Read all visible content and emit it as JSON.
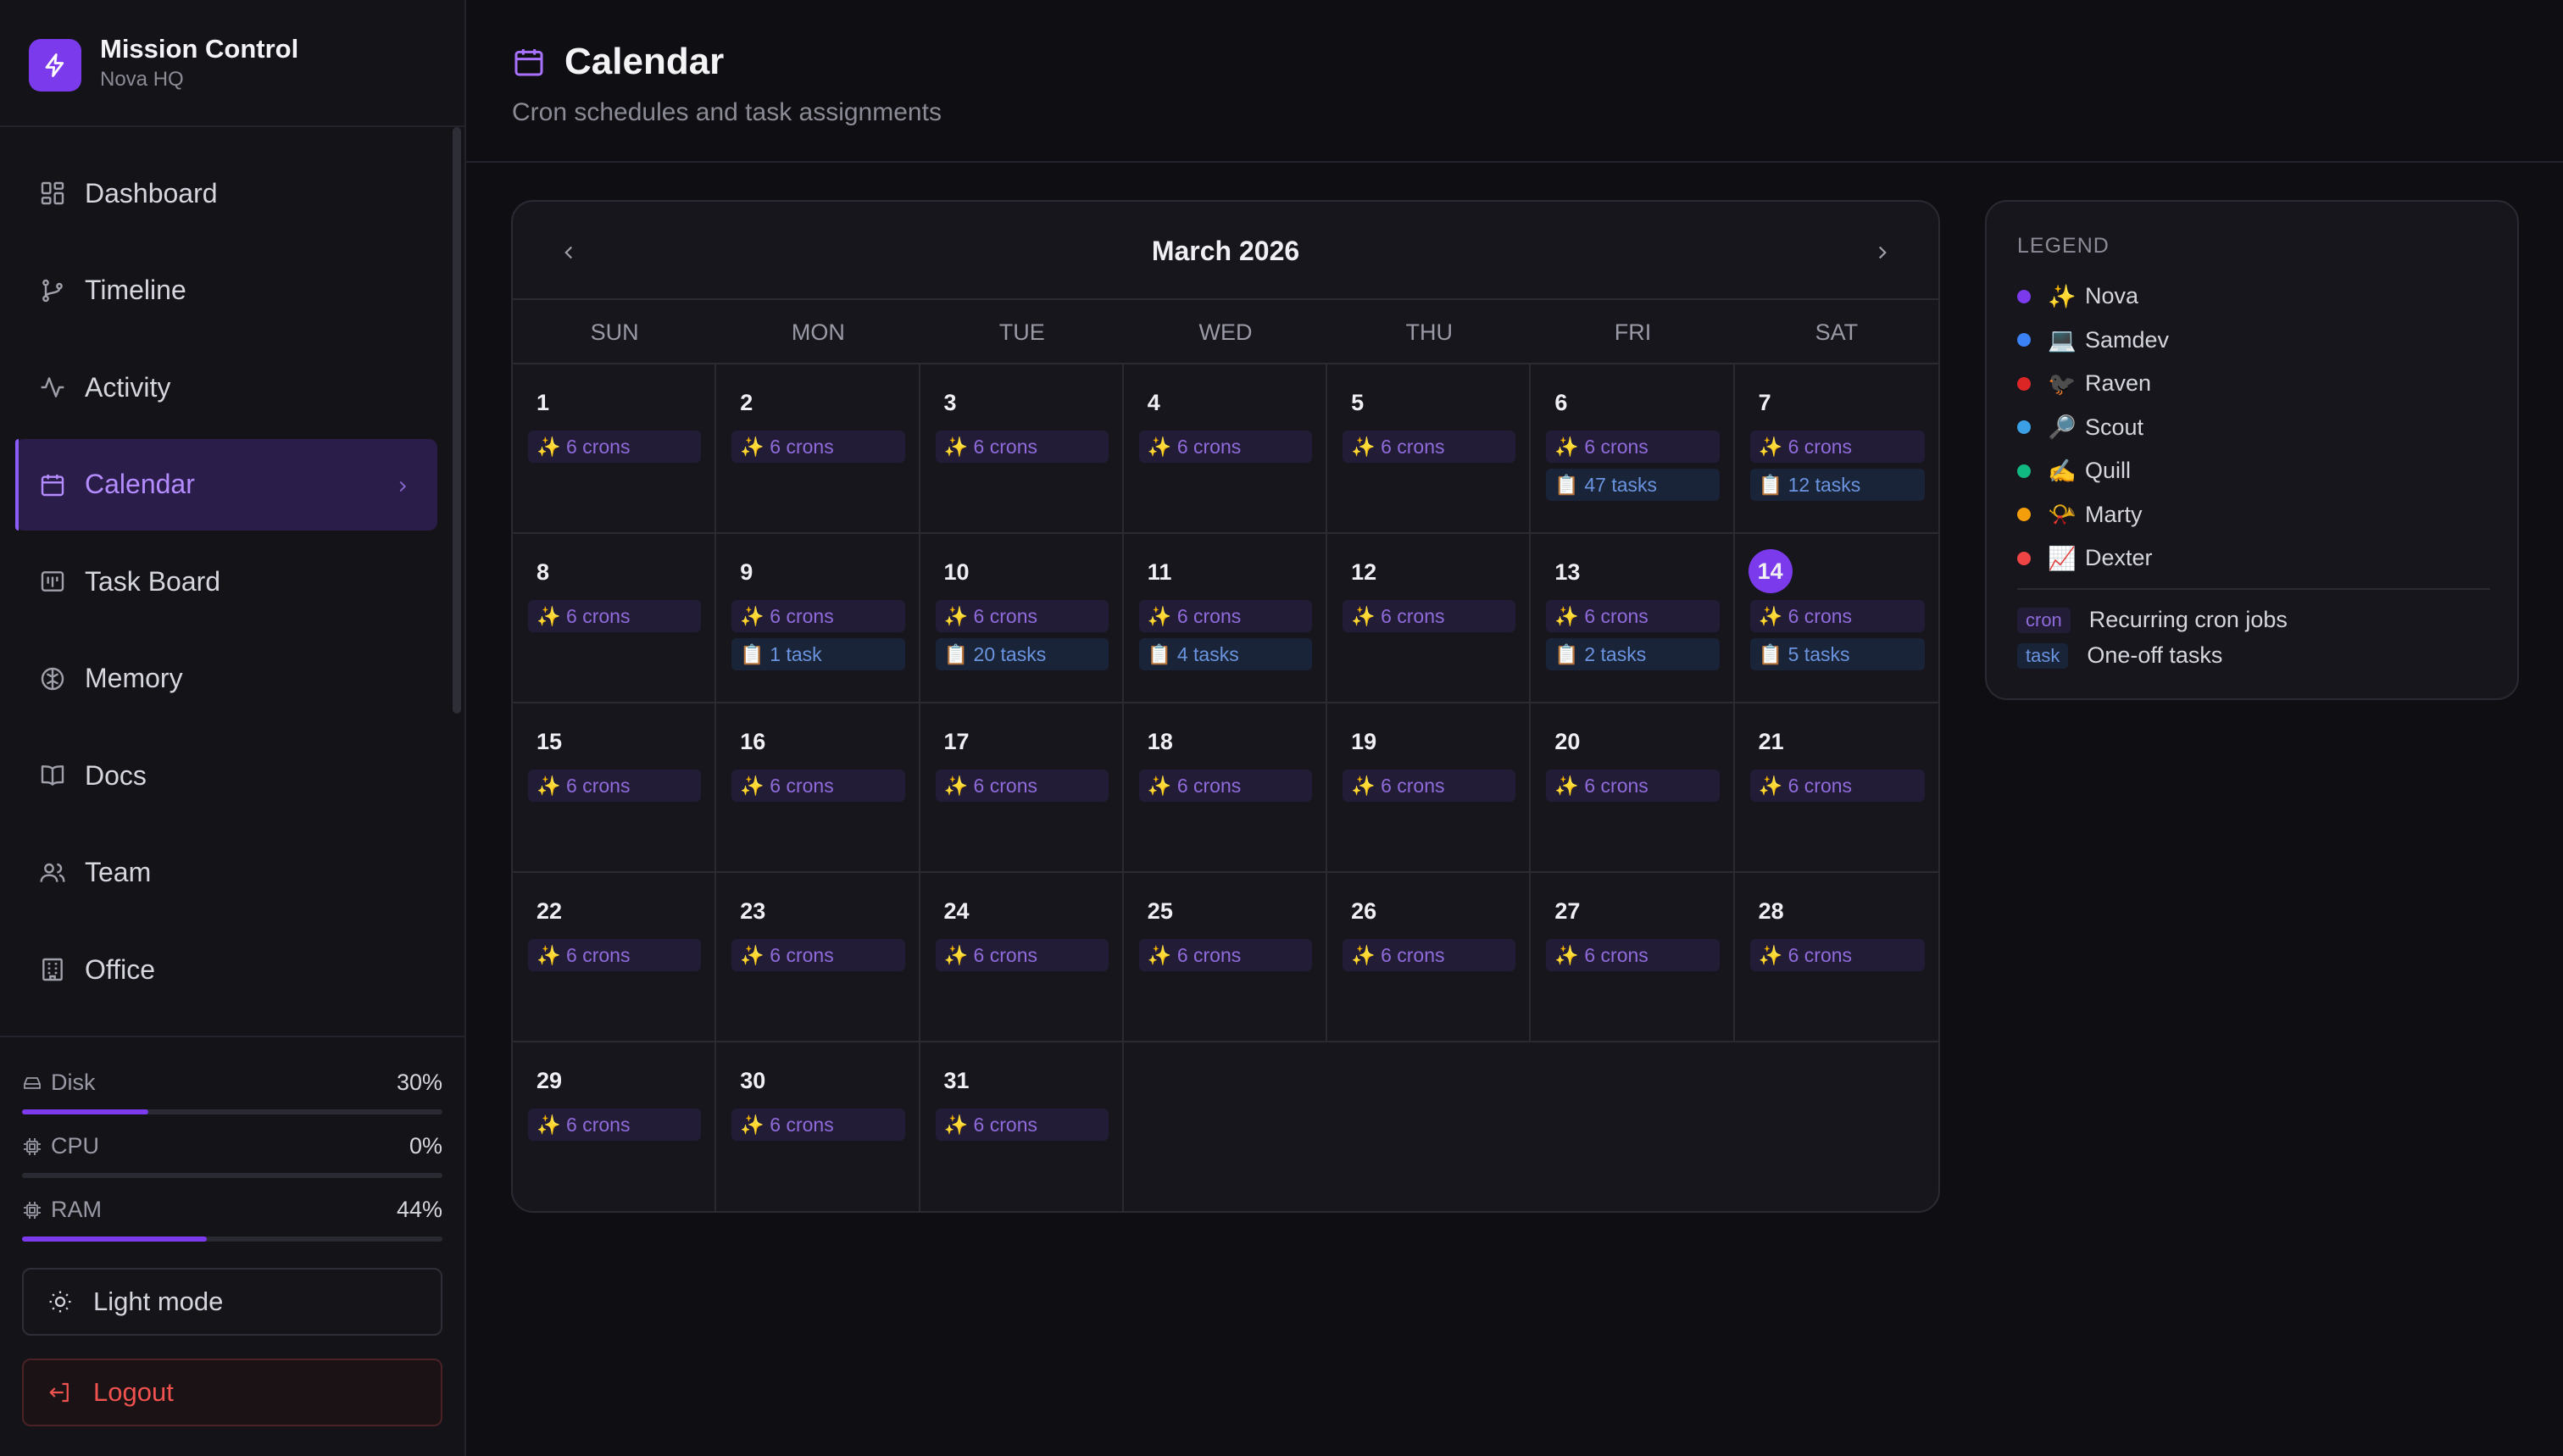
{
  "brand": {
    "title": "Mission Control",
    "subtitle": "Nova HQ"
  },
  "nav": [
    {
      "label": "Dashboard",
      "icon": "dashboard-icon"
    },
    {
      "label": "Timeline",
      "icon": "branch-icon"
    },
    {
      "label": "Activity",
      "icon": "pulse-icon"
    },
    {
      "label": "Calendar",
      "icon": "calendar-icon",
      "active": true
    },
    {
      "label": "Task Board",
      "icon": "board-icon"
    },
    {
      "label": "Memory",
      "icon": "brain-icon"
    },
    {
      "label": "Docs",
      "icon": "book-icon"
    },
    {
      "label": "Team",
      "icon": "users-icon"
    },
    {
      "label": "Office",
      "icon": "building-icon"
    }
  ],
  "metrics": [
    {
      "label": "Disk",
      "value": "30%",
      "fraction": 0.3
    },
    {
      "label": "CPU",
      "value": "0%",
      "fraction": 0.0
    },
    {
      "label": "RAM",
      "value": "44%",
      "fraction": 0.44
    }
  ],
  "buttons": {
    "light_mode": "Light mode",
    "logout": "Logout"
  },
  "header": {
    "title": "Calendar",
    "subtitle": "Cron schedules and task assignments"
  },
  "calendar": {
    "month": "March 2026",
    "weekdays": [
      "SUN",
      "MON",
      "TUE",
      "WED",
      "THU",
      "FRI",
      "SAT"
    ],
    "today": 14,
    "days": [
      {
        "day": "1",
        "cron": "✨ 6 crons",
        "task": ""
      },
      {
        "day": "2",
        "cron": "✨ 6 crons",
        "task": ""
      },
      {
        "day": "3",
        "cron": "✨ 6 crons",
        "task": ""
      },
      {
        "day": "4",
        "cron": "✨ 6 crons",
        "task": ""
      },
      {
        "day": "5",
        "cron": "✨ 6 crons",
        "task": ""
      },
      {
        "day": "6",
        "cron": "✨ 6 crons",
        "task": "📋 47 tasks"
      },
      {
        "day": "7",
        "cron": "✨ 6 crons",
        "task": "📋 12 tasks"
      },
      {
        "day": "8",
        "cron": "✨ 6 crons",
        "task": ""
      },
      {
        "day": "9",
        "cron": "✨ 6 crons",
        "task": "📋 1 task"
      },
      {
        "day": "10",
        "cron": "✨ 6 crons",
        "task": "📋 20 tasks"
      },
      {
        "day": "11",
        "cron": "✨ 6 crons",
        "task": "📋 4 tasks"
      },
      {
        "day": "12",
        "cron": "✨ 6 crons",
        "task": ""
      },
      {
        "day": "13",
        "cron": "✨ 6 crons",
        "task": "📋 2 tasks"
      },
      {
        "day": "14",
        "cron": "✨ 6 crons",
        "task": "📋 5 tasks"
      },
      {
        "day": "15",
        "cron": "✨ 6 crons",
        "task": ""
      },
      {
        "day": "16",
        "cron": "✨ 6 crons",
        "task": ""
      },
      {
        "day": "17",
        "cron": "✨ 6 crons",
        "task": ""
      },
      {
        "day": "18",
        "cron": "✨ 6 crons",
        "task": ""
      },
      {
        "day": "19",
        "cron": "✨ 6 crons",
        "task": ""
      },
      {
        "day": "20",
        "cron": "✨ 6 crons",
        "task": ""
      },
      {
        "day": "21",
        "cron": "✨ 6 crons",
        "task": ""
      },
      {
        "day": "22",
        "cron": "✨ 6 crons",
        "task": ""
      },
      {
        "day": "23",
        "cron": "✨ 6 crons",
        "task": ""
      },
      {
        "day": "24",
        "cron": "✨ 6 crons",
        "task": ""
      },
      {
        "day": "25",
        "cron": "✨ 6 crons",
        "task": ""
      },
      {
        "day": "26",
        "cron": "✨ 6 crons",
        "task": ""
      },
      {
        "day": "27",
        "cron": "✨ 6 crons",
        "task": ""
      },
      {
        "day": "28",
        "cron": "✨ 6 crons",
        "task": ""
      },
      {
        "day": "29",
        "cron": "✨ 6 crons",
        "task": ""
      },
      {
        "day": "30",
        "cron": "✨ 6 crons",
        "task": ""
      },
      {
        "day": "31",
        "cron": "✨ 6 crons",
        "task": ""
      }
    ]
  },
  "legend": {
    "title": "LEGEND",
    "agents": [
      {
        "emoji": "✨",
        "name": "Nova",
        "color": "#7c3aed"
      },
      {
        "emoji": "💻",
        "name": "Samdev",
        "color": "#3b82f6"
      },
      {
        "emoji": "🐦‍⬛",
        "name": "Raven",
        "color": "#dc2626"
      },
      {
        "emoji": "🔎",
        "name": "Scout",
        "color": "#3b9fe6"
      },
      {
        "emoji": "✍️",
        "name": "Quill",
        "color": "#10b981"
      },
      {
        "emoji": "📯",
        "name": "Marty",
        "color": "#f59e0b"
      },
      {
        "emoji": "📈",
        "name": "Dexter",
        "color": "#ef4444"
      }
    ],
    "kinds": [
      {
        "badge": "cron",
        "label": "Recurring cron jobs"
      },
      {
        "badge": "task",
        "label": "One-off tasks"
      }
    ]
  },
  "colors": {
    "accent": "#7c3aed",
    "danger": "#f0524f",
    "background": "#0e0e13"
  }
}
